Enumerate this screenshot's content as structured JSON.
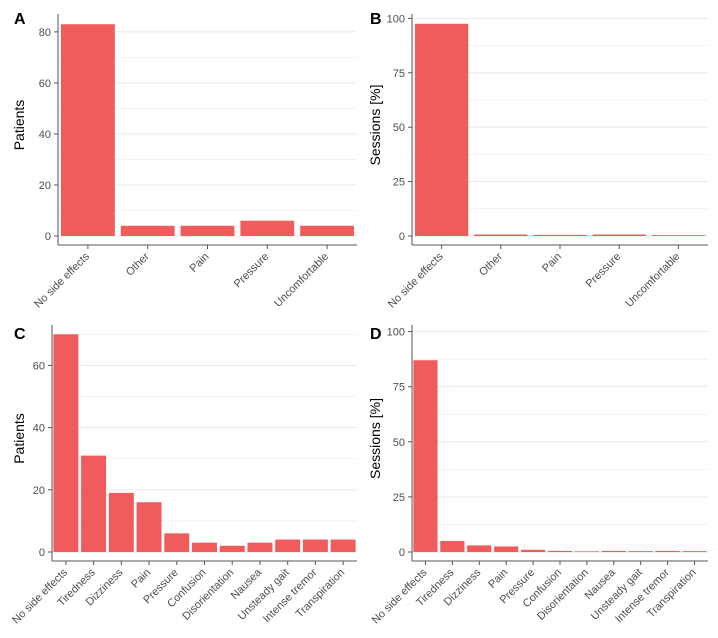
{
  "colors": {
    "bar": "#f05c5c",
    "grid": "#e6e6e6",
    "axis": "#555555"
  },
  "chart_data": [
    {
      "panel": "A",
      "type": "bar",
      "ylabel": "Patients",
      "xlabel": "",
      "categories": [
        "No side effects",
        "Other",
        "Pain",
        "Pressure",
        "Uncomfortable"
      ],
      "values": [
        83,
        4,
        4,
        6,
        4
      ],
      "ylim": [
        0,
        87
      ],
      "yticks": [
        0,
        20,
        40,
        60,
        80
      ],
      "grid": true
    },
    {
      "panel": "B",
      "type": "bar",
      "ylabel": "Sessions [%]",
      "xlabel": "",
      "categories": [
        "No side effects",
        "Other",
        "Pain",
        "Pressure",
        "Uncomfortable"
      ],
      "values": [
        97.5,
        0.7,
        0.5,
        0.7,
        0.4
      ],
      "ylim": [
        0,
        102
      ],
      "yticks": [
        0,
        25,
        50,
        75,
        100
      ],
      "grid": true
    },
    {
      "panel": "C",
      "type": "bar",
      "ylabel": "Patients",
      "xlabel": "",
      "categories": [
        "No side effects",
        "Tiredness",
        "Dizziness",
        "Pain",
        "Pressure",
        "Confusion",
        "Disorientation",
        "Nausea",
        "Unsteady gait",
        "Intense tremor",
        "Transpiration"
      ],
      "values": [
        70,
        31,
        19,
        16,
        6,
        3,
        2,
        3,
        4,
        4,
        4
      ],
      "ylim": [
        0,
        73
      ],
      "yticks": [
        0,
        20,
        40,
        60
      ],
      "grid": true
    },
    {
      "panel": "D",
      "type": "bar",
      "ylabel": "Sessions [%]",
      "xlabel": "",
      "categories": [
        "No side effects",
        "Tiredness",
        "Dizziness",
        "Pain",
        "Pressure",
        "Confusion",
        "Disorientation",
        "Nausea",
        "Unsteady gait",
        "Intense tremor",
        "Transpiration"
      ],
      "values": [
        87,
        5,
        3,
        2.5,
        1,
        0.5,
        0.3,
        0.5,
        0.4,
        0.5,
        0.4
      ],
      "ylim": [
        0,
        103
      ],
      "yticks": [
        0,
        25,
        50,
        75,
        100
      ],
      "grid": true
    }
  ]
}
